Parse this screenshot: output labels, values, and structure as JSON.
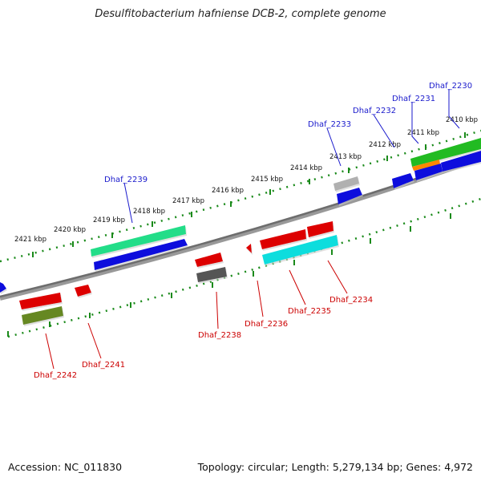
{
  "title": "Desulfitobacterium hafniense DCB-2, complete genome",
  "footer": {
    "accession": "Accession: NC_011830",
    "topology": "Topology: circular; Length: 5,279,134 bp; Genes: 4,972"
  },
  "ticks": [
    "2410 kbp",
    "2411 kbp",
    "2412 kbp",
    "2413 kbp",
    "2414 kbp",
    "2415 kbp",
    "2416 kbp",
    "2417 kbp",
    "2418 kbp",
    "2419 kbp",
    "2420 kbp",
    "2421 kbp"
  ],
  "genes_top": [
    "Dhaf_2230",
    "Dhaf_2231",
    "Dhaf_2232",
    "Dhaf_2233",
    "Dhaf_2239"
  ],
  "genes_bottom": [
    "Dhaf_2234",
    "Dhaf_2235",
    "Dhaf_2236",
    "Dhaf_2238",
    "Dhaf_2241",
    "Dhaf_2242"
  ],
  "colors": {
    "forward_label": "#1a1acc",
    "reverse_label": "#cc0000",
    "backbone": "#7a7a7a",
    "scale": "#1a8a1a"
  }
}
